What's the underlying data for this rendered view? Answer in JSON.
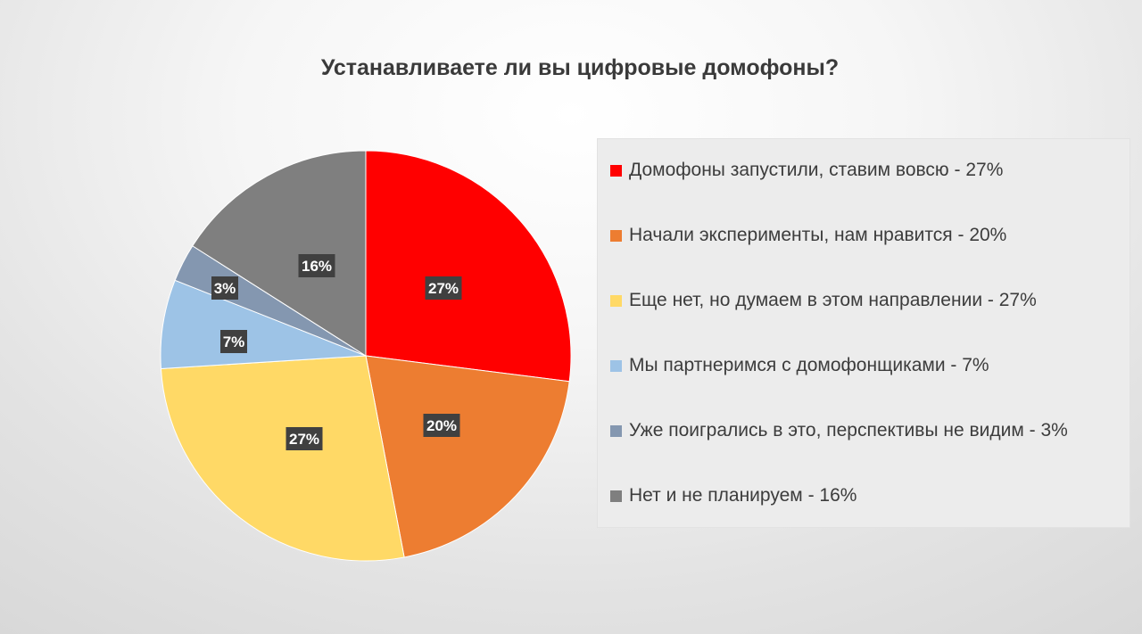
{
  "chart_data": {
    "type": "pie",
    "title": "Устанавливаете ли вы цифровые домофоны?",
    "categories": [
      "Домофоны запустили, ставим вовсю - 27%",
      "Начали эксперименты, нам нравится - 20%",
      "Еще нет, но думаем в этом направлении - 27%",
      "Мы партнеримся с домофонщиками - 7%",
      "Уже поигрались в это, перспективы не видим - 3%",
      "Нет и не планируем - 16%"
    ],
    "values": [
      27,
      20,
      27,
      7,
      3,
      16
    ],
    "data_labels": [
      "27%",
      "20%",
      "27%",
      "7%",
      "3%",
      "16%"
    ],
    "colors": [
      "#ff0000",
      "#ed7d31",
      "#ffd966",
      "#9dc3e6",
      "#8497b0",
      "#7f7f7f"
    ],
    "legend_position": "right"
  }
}
